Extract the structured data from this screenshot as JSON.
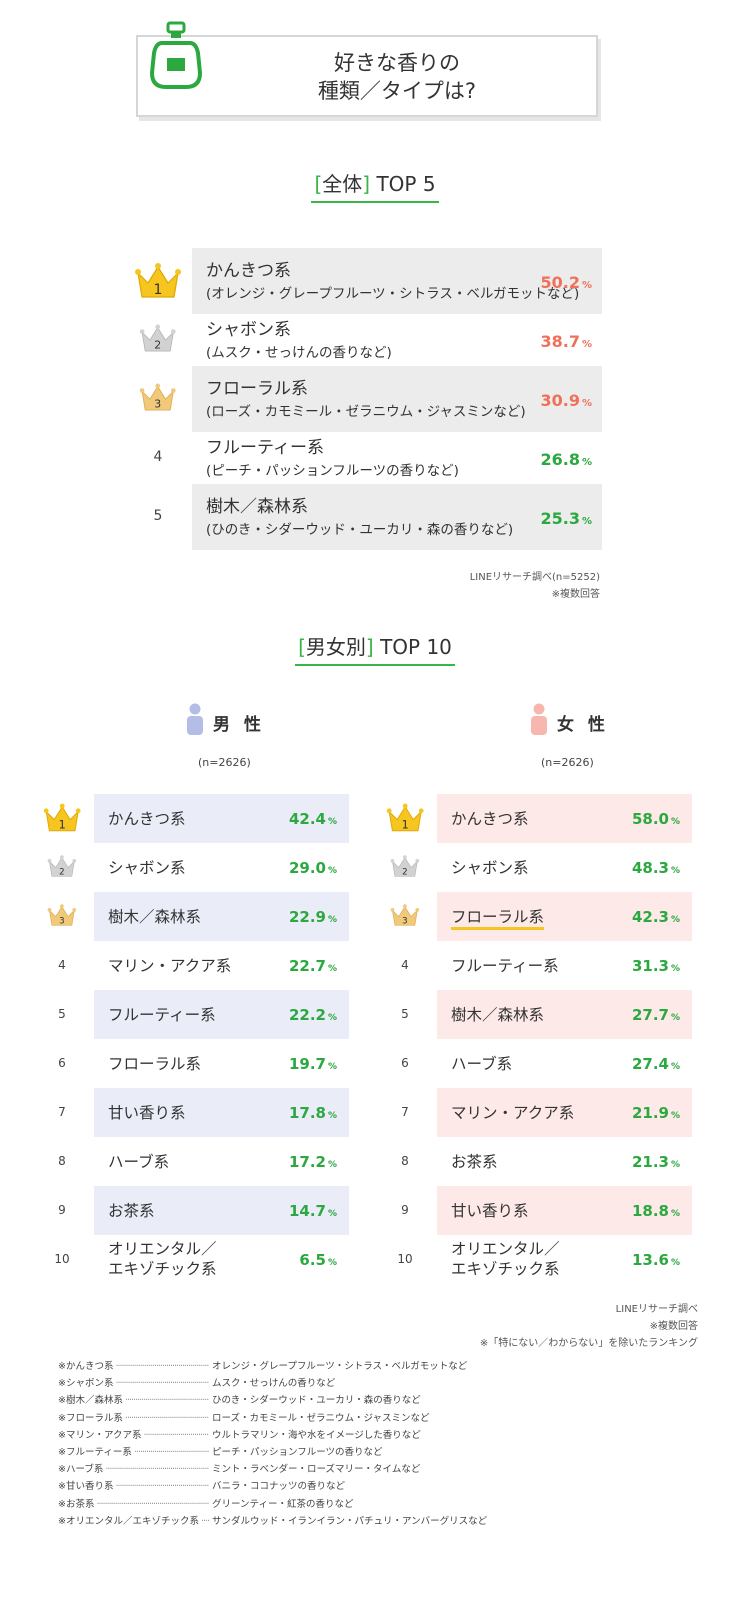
{
  "title": {
    "line1": "好きな香りの",
    "line2": "種類／タイプは?"
  },
  "colors": {
    "accent": "#3ab54a",
    "value_red": "#f0705a",
    "value_green": "#2ba83f",
    "male_shade": "#eaedf8",
    "female_shade": "#fde9e7",
    "gold": "#f6c520",
    "silver": "#c8c8c8",
    "bronze": "#f0c97a"
  },
  "overall": {
    "heading_open": "[",
    "heading_label": "全体",
    "heading_close": "]",
    "heading_rest": "TOP 5",
    "pct_unit": "%",
    "items": [
      {
        "rank": "1",
        "name": "かんきつ系",
        "desc": "(オレンジ・グレープフルーツ・シトラス・ベルガモットなど)",
        "value": "50.2"
      },
      {
        "rank": "2",
        "name": "シャボン系",
        "desc": "(ムスク・せっけんの香りなど)",
        "value": "38.7"
      },
      {
        "rank": "3",
        "name": "フローラル系",
        "desc": "(ローズ・カモミール・ゼラニウム・ジャスミンなど)",
        "value": "30.9"
      },
      {
        "rank": "4",
        "name": "フルーティー系",
        "desc": "(ピーチ・パッションフルーツの香りなど)",
        "value": "26.8"
      },
      {
        "rank": "5",
        "name": "樹木／森林系",
        "desc": "(ひのき・シダーウッド・ユーカリ・森の香りなど)",
        "value": "25.3"
      }
    ],
    "source": "LINEリサーチ調べ(n=5252)",
    "note": "※複数回答"
  },
  "gender": {
    "heading_open": "[",
    "heading_label": "男女別",
    "heading_close": "]",
    "heading_rest": "TOP 10",
    "male": {
      "label": "男 性",
      "n": "(n=2626)",
      "items": [
        {
          "rank": "1",
          "name": "かんきつ系",
          "value": "42.4"
        },
        {
          "rank": "2",
          "name": "シャボン系",
          "value": "29.0"
        },
        {
          "rank": "3",
          "name": "樹木／森林系",
          "value": "22.9"
        },
        {
          "rank": "4",
          "name": "マリン・アクア系",
          "value": "22.7"
        },
        {
          "rank": "5",
          "name": "フルーティー系",
          "value": "22.2"
        },
        {
          "rank": "6",
          "name": "フローラル系",
          "value": "19.7"
        },
        {
          "rank": "7",
          "name": "甘い香り系",
          "value": "17.8"
        },
        {
          "rank": "8",
          "name": "ハーブ系",
          "value": "17.2"
        },
        {
          "rank": "9",
          "name": "お茶系",
          "value": "14.7"
        },
        {
          "rank": "10",
          "name": "オリエンタル／",
          "name2": "エキゾチック系",
          "value": "6.5"
        }
      ]
    },
    "female": {
      "label": "女 性",
      "n": "(n=2626)",
      "items": [
        {
          "rank": "1",
          "name": "かんきつ系",
          "value": "58.0"
        },
        {
          "rank": "2",
          "name": "シャボン系",
          "value": "48.3"
        },
        {
          "rank": "3",
          "name": "フローラル系",
          "value": "42.3"
        },
        {
          "rank": "4",
          "name": "フルーティー系",
          "value": "31.3"
        },
        {
          "rank": "5",
          "name": "樹木／森林系",
          "value": "27.7"
        },
        {
          "rank": "6",
          "name": "ハーブ系",
          "value": "27.4"
        },
        {
          "rank": "7",
          "name": "マリン・アクア系",
          "value": "21.9"
        },
        {
          "rank": "8",
          "name": "お茶系",
          "value": "21.3"
        },
        {
          "rank": "9",
          "name": "甘い香り系",
          "value": "18.8"
        },
        {
          "rank": "10",
          "name": "オリエンタル／",
          "name2": "エキゾチック系",
          "value": "13.6"
        }
      ]
    },
    "source": "LINEリサーチ調べ",
    "note1": "※複数回答",
    "note2": "※「特にない／わからない」を除いたランキング"
  },
  "glossary": [
    {
      "term": "※かんきつ系",
      "desc": "オレンジ・グレープフルーツ・シトラス・ベルガモットなど"
    },
    {
      "term": "※シャボン系",
      "desc": "ムスク・せっけんの香りなど"
    },
    {
      "term": "※樹木／森林系",
      "desc": "ひのき・シダーウッド・ユーカリ・森の香りなど"
    },
    {
      "term": "※フローラル系",
      "desc": "ローズ・カモミール・ゼラニウム・ジャスミンなど"
    },
    {
      "term": "※マリン・アクア系",
      "desc": "ウルトラマリン・海や水をイメージした香りなど"
    },
    {
      "term": "※フルーティー系",
      "desc": "ピーチ・パッションフルーツの香りなど"
    },
    {
      "term": "※ハーブ系",
      "desc": "ミント・ラベンダー・ローズマリー・タイムなど"
    },
    {
      "term": "※甘い香り系",
      "desc": "バニラ・ココナッツの香りなど"
    },
    {
      "term": "※お茶系",
      "desc": "グリーンティー・紅茶の香りなど"
    },
    {
      "term": "※オリエンタル／エキゾチック系",
      "desc": "サンダルウッド・イランイラン・パチュリ・アンバーグリスなど"
    }
  ],
  "chart_data": [
    {
      "type": "table",
      "title": "[全体] TOP 5",
      "categories": [
        "かんきつ系",
        "シャボン系",
        "フローラル系",
        "フルーティー系",
        "樹木／森林系"
      ],
      "values": [
        50.2,
        38.7,
        30.9,
        26.8,
        25.3
      ]
    },
    {
      "type": "table",
      "title": "[男女別] TOP 10 男 性",
      "categories": [
        "かんきつ系",
        "シャボン系",
        "樹木／森林系",
        "マリン・アクア系",
        "フルーティー系",
        "フローラル系",
        "甘い香り系",
        "ハーブ系",
        "お茶系",
        "オリエンタル／エキゾチック系"
      ],
      "values": [
        42.4,
        29.0,
        22.9,
        22.7,
        22.2,
        19.7,
        17.8,
        17.2,
        14.7,
        6.5
      ]
    },
    {
      "type": "table",
      "title": "[男女別] TOP 10 女 性",
      "categories": [
        "かんきつ系",
        "シャボン系",
        "フローラル系",
        "フルーティー系",
        "樹木／森林系",
        "ハーブ系",
        "マリン・アクア系",
        "お茶系",
        "甘い香り系",
        "オリエンタル／エキゾチック系"
      ],
      "values": [
        58.0,
        48.3,
        42.3,
        31.3,
        27.7,
        27.4,
        21.9,
        21.3,
        18.8,
        13.6
      ]
    }
  ]
}
